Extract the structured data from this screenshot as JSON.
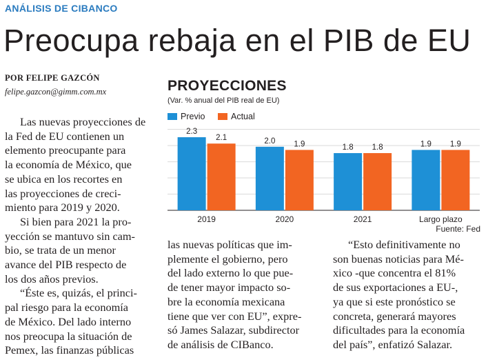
{
  "section": "ANÁLISIS DE CIBANCO",
  "headline": "Preocupa rebaja en el PIB de EU",
  "byline": "POR FELIPE GAZCÓN",
  "email": "felipe.gazcon@gimm.com.mx",
  "body": {
    "col1": [
      "Las nuevas proyecciones de",
      "la Fed de EU contienen un",
      "elemento preocupante para",
      "la economía de México, que",
      "se ubica en los recortes en",
      "las proyecciones de creci-",
      "miento para 2019 y 2020.",
      "Si bien para 2021 la pro-",
      "yección se mantuvo sin cam-",
      "bio, se trata de un menor",
      "avance del PIB respecto de",
      "los dos años previos.",
      "“Éste es, quizás, el princi-",
      "pal riesgo para la economía",
      "de México. Del lado interno",
      "nos preocupa la situación de",
      "Pemex, las finanzas públicas"
    ],
    "col2": [
      "las nuevas políticas que im-",
      "plemente el gobierno, pero",
      "del lado externo lo que pue-",
      "de tener mayor impacto so-",
      "bre la economía mexicana",
      "tiene que ver con EU”, expre-",
      "só James Salazar, subdirector",
      "de análisis de CIBanco."
    ],
    "col3": [
      "“Esto definitivamente no",
      "son buenas noticias para Mé-",
      "xico -que concentra el 81%",
      "de sus exportaciones a EU-,",
      "ya que si este pronóstico se",
      "concreta, generará mayores",
      "dificultades para la economía",
      "del país”, enfatizó Salazar."
    ]
  },
  "chart_data": {
    "type": "bar",
    "title": "PROYECCIONES",
    "subtitle": "(Var. % anual del PIB real de EU)",
    "categories": [
      "2019",
      "2020",
      "2021",
      "Largo plazo"
    ],
    "series": [
      {
        "name": "Previo",
        "values": [
          2.3,
          2.0,
          1.8,
          1.9
        ],
        "labels": [
          "2.3",
          "2.0",
          "1.8",
          "1.9"
        ],
        "color": "#1e90d6"
      },
      {
        "name": "Actual",
        "values": [
          2.1,
          1.9,
          1.8,
          1.9
        ],
        "labels": [
          "2.1",
          "1.9",
          "1.8",
          "1.9"
        ],
        "color": "#f26522"
      }
    ],
    "ylim": [
      0,
      2.3
    ],
    "grid": true,
    "legend": "top-left",
    "source": "Fuente: Fed"
  }
}
